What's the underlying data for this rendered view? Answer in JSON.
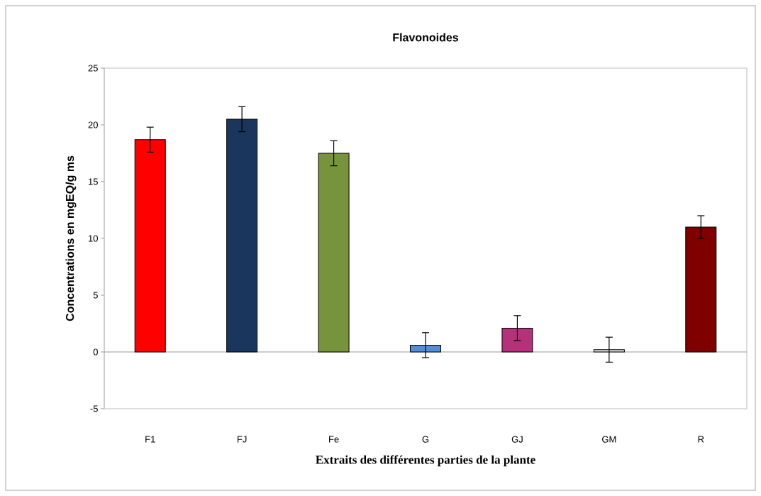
{
  "chart_data": {
    "type": "bar",
    "title": "Flavonoides",
    "xlabel": "Extraits des différentes parties de la plante",
    "ylabel": "Concentrations en mgEQ/g ms",
    "categories": [
      "F1",
      "FJ",
      "Fe",
      "G",
      "GJ",
      "GM",
      "R"
    ],
    "values": [
      18.7,
      20.5,
      17.5,
      0.6,
      2.1,
      0.2,
      11.0
    ],
    "errors": [
      1.1,
      1.1,
      1.1,
      1.1,
      1.1,
      1.1,
      1.0
    ],
    "colors": [
      "#ff0000",
      "#1b365d",
      "#77933c",
      "#558ed5",
      "#b5317a",
      "#d9d9d9",
      "#800000"
    ],
    "ylim": [
      -5,
      25
    ],
    "yticks": [
      -5,
      0,
      5,
      10,
      15,
      20,
      25
    ]
  }
}
